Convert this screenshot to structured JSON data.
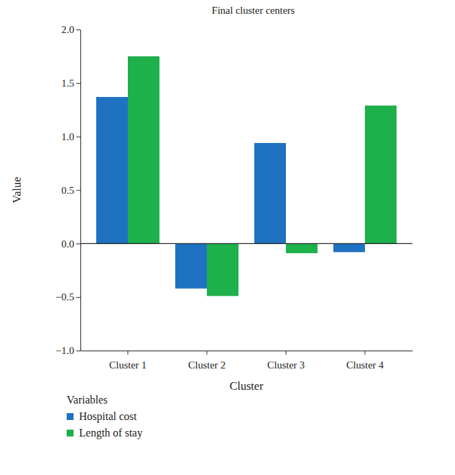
{
  "chart_data": {
    "type": "bar",
    "title": "Final cluster centers",
    "x_label": "Cluster",
    "y_label": "Value",
    "legend_title": "Variables",
    "legend": "bottom",
    "categories": [
      "Cluster 1",
      "Cluster 2",
      "Cluster 3",
      "Cluster 4"
    ],
    "series": [
      {
        "name": "Hospital cost",
        "color": "#1f72c2",
        "values": [
          1.37,
          -0.42,
          0.94,
          -0.08
        ]
      },
      {
        "name": "Length of stay",
        "color": "#1db04b",
        "values": [
          1.75,
          -0.49,
          -0.09,
          1.29
        ]
      }
    ],
    "ylim": [
      -1,
      2
    ],
    "yticks": [
      {
        "value": -1,
        "label": "−1.0"
      },
      {
        "value": -0.5,
        "label": "−0.5"
      },
      {
        "value": 0,
        "label": "0.0"
      },
      {
        "value": 0.5,
        "label": "0.5"
      },
      {
        "value": 1,
        "label": "1.0"
      },
      {
        "value": 1.5,
        "label": "1.5"
      },
      {
        "value": 2,
        "label": "2.0"
      }
    ]
  }
}
